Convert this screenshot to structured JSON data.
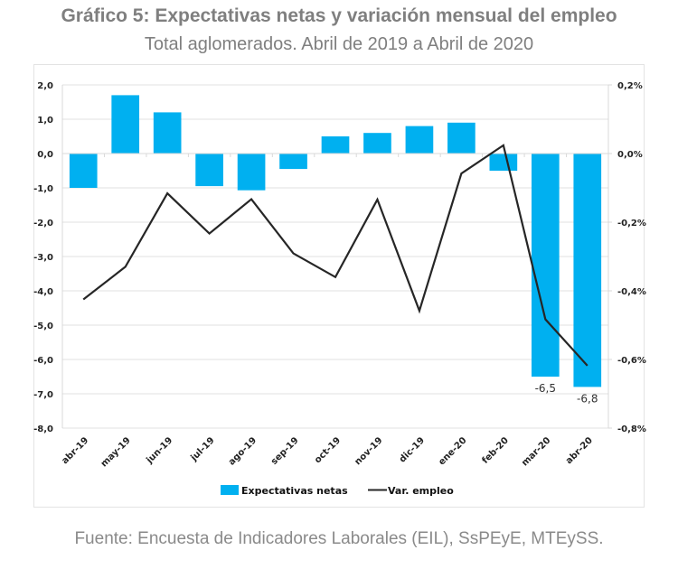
{
  "header": {
    "title": "Gráfico 5: Expectativas netas y variación mensual del empleo",
    "subtitle": "Total aglomerados. Abril de 2019 a Abril de 2020"
  },
  "footer": {
    "source": "Fuente: Encuesta de Indicadores Laborales (EIL), SsPEyE, MTEySS."
  },
  "chart_data": {
    "type": "bar",
    "title": "Gráfico 5: Expectativas netas y variación mensual del empleo",
    "subtitle": "Total aglomerados. Abril de 2019 a Abril de 2020",
    "xlabel": "",
    "ylabel": "",
    "categories": [
      "abr-19",
      "may-19",
      "jun-19",
      "jul-19",
      "ago-19",
      "sep-19",
      "oct-19",
      "nov-19",
      "dic-19",
      "ene-20",
      "feb-20",
      "mar-20",
      "abr-20"
    ],
    "series": [
      {
        "name": "Expectativas netas",
        "type": "bar",
        "axis": "left",
        "color": "#00b0f0",
        "values": [
          -1.0,
          1.7,
          1.2,
          -0.95,
          -1.07,
          -0.45,
          0.5,
          0.6,
          0.8,
          0.9,
          -0.5,
          -6.5,
          -6.8
        ],
        "data_labels": {
          "11": "-6,5",
          "12": "-6,8"
        }
      },
      {
        "name": "Var. empleo",
        "type": "line",
        "axis": "right",
        "color": "#262626",
        "unit": "%",
        "values": [
          -0.425,
          -0.33,
          -0.116,
          -0.233,
          -0.133,
          -0.291,
          -0.36,
          -0.134,
          -0.458,
          -0.058,
          0.024,
          -0.483,
          -0.618
        ]
      }
    ],
    "ylim": [
      -8.0,
      2.0
    ],
    "yticks": [
      2.0,
      1.0,
      0.0,
      -1.0,
      -2.0,
      -3.0,
      -4.0,
      -5.0,
      -6.0,
      -7.0,
      -8.0
    ],
    "ytick_labels": [
      "2,0",
      "1,0",
      "0,0",
      "-1,0",
      "-2,0",
      "-3,0",
      "-4,0",
      "-5,0",
      "-6,0",
      "-7,0",
      "-8,0"
    ],
    "y2lim": [
      -0.8,
      0.2
    ],
    "y2ticks": [
      0.2,
      0.0,
      -0.2,
      -0.4,
      -0.6,
      -0.8
    ],
    "y2tick_labels": [
      "0,2%",
      "0,0%",
      "-0,2%",
      "-0,4%",
      "-0,6%",
      "-0,8%"
    ],
    "grid": true,
    "legend": {
      "position": "bottom",
      "entries": [
        "Expectativas netas",
        "Var. empleo"
      ]
    }
  }
}
